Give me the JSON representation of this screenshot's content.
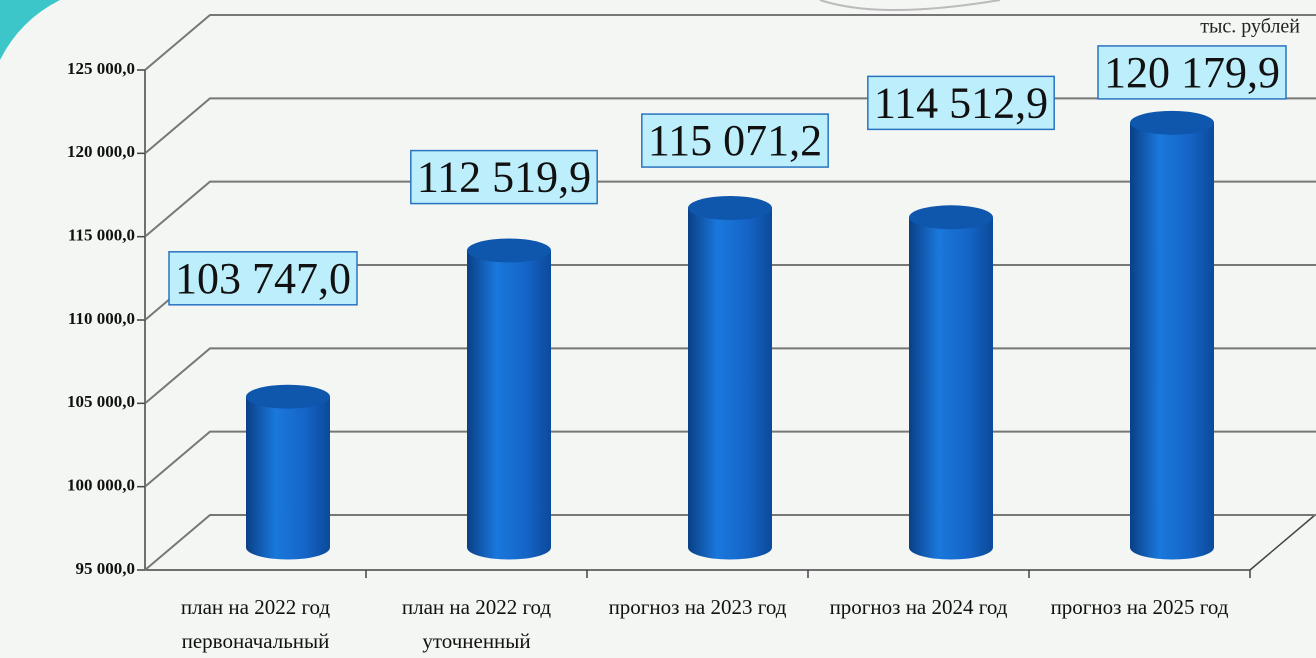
{
  "chart_data": {
    "type": "bar",
    "unit_label": "тыс. рублей",
    "categories": [
      "план на 2022 год первоначальный",
      "план на 2022 год уточненный",
      "прогноз на 2023 год",
      "прогноз на 2024 год",
      "прогноз на 2025 год"
    ],
    "values": [
      103747.0,
      112519.9,
      115071.2,
      114512.9,
      120179.9
    ],
    "value_labels": [
      "103 747,0",
      "112 519,9",
      "115 071,2",
      "114 512,9",
      "120 179,9"
    ],
    "color": "#1565c8",
    "ylim": [
      95000,
      125000
    ],
    "yticks": [
      {
        "value": 95000,
        "label": "95 000,0"
      },
      {
        "value": 100000,
        "label": "100 000,0"
      },
      {
        "value": 105000,
        "label": "105 000,0"
      },
      {
        "value": 110000,
        "label": "110 000,0"
      },
      {
        "value": 115000,
        "label": "115 000,0"
      },
      {
        "value": 120000,
        "label": "120 000,0"
      },
      {
        "value": 125000,
        "label": "125 000,0"
      }
    ],
    "grid": true
  }
}
